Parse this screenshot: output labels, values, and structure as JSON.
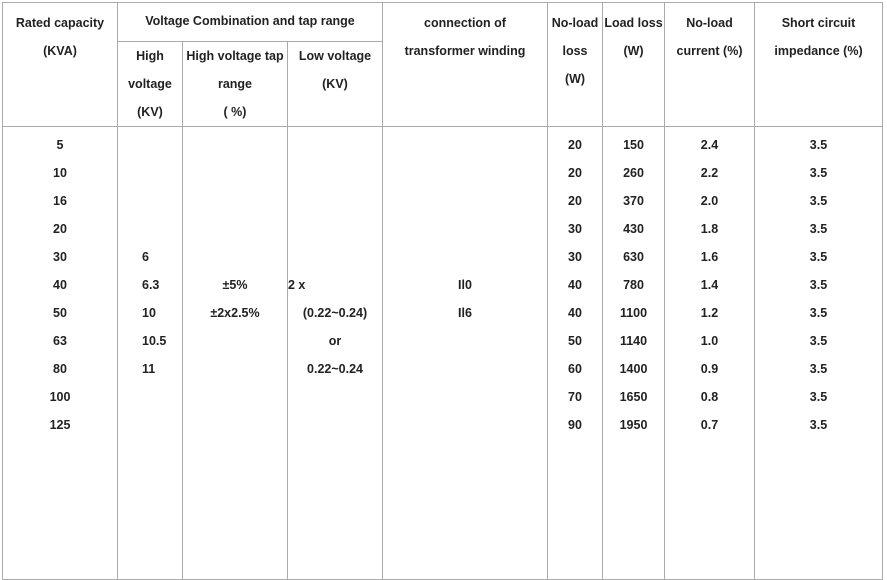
{
  "header": {
    "rated_capacity": [
      "Rated capacity",
      "(KVA)"
    ],
    "voltage_group": "Voltage Combination and  tap  range",
    "high_voltage": [
      "High",
      "voltage",
      "(KV)"
    ],
    "tap_range": [
      "High voltage tap",
      "range",
      "( %)"
    ],
    "low_voltage": [
      "Low voltage",
      "(KV)"
    ],
    "connection": [
      "connection of",
      "transformer winding"
    ],
    "no_load_loss": [
      "No-load",
      "loss",
      "(W)"
    ],
    "load_loss": [
      "Load loss",
      "(W)"
    ],
    "no_load_current": [
      "No-load",
      "current (%)"
    ],
    "impedance": [
      "Short circuit",
      "impedance (%)"
    ]
  },
  "body": {
    "rated_capacity": [
      "5",
      "10",
      "16",
      "20",
      "30",
      "40",
      "50",
      "63",
      "80",
      "100",
      "125"
    ],
    "high_voltage": [
      "6",
      "6.3",
      "10",
      "10.5",
      "11"
    ],
    "tap_range": [
      "±5%",
      "±2x2.5%"
    ],
    "low_voltage": [
      "2 x",
      "(0.22~0.24)",
      "or",
      "0.22~0.24"
    ],
    "connection": [
      "Il0",
      "Il6"
    ],
    "no_load_loss": [
      "20",
      "20",
      "20",
      "30",
      "30",
      "40",
      "40",
      "50",
      "60",
      "70",
      "90"
    ],
    "load_loss": [
      "150",
      "260",
      "370",
      "430",
      "630",
      "780",
      "1100",
      "1140",
      "1400",
      "1650",
      "1950"
    ],
    "no_load_current": [
      "2.4",
      "2.2",
      "2.0",
      "1.8",
      "1.6",
      "1.4",
      "1.2",
      "1.0",
      "0.9",
      "0.8",
      "0.7"
    ],
    "impedance": [
      "3.5",
      "3.5",
      "3.5",
      "3.5",
      "3.5",
      "3.5",
      "3.5",
      "3.5",
      "3.5",
      "3.5",
      "3.5"
    ]
  }
}
